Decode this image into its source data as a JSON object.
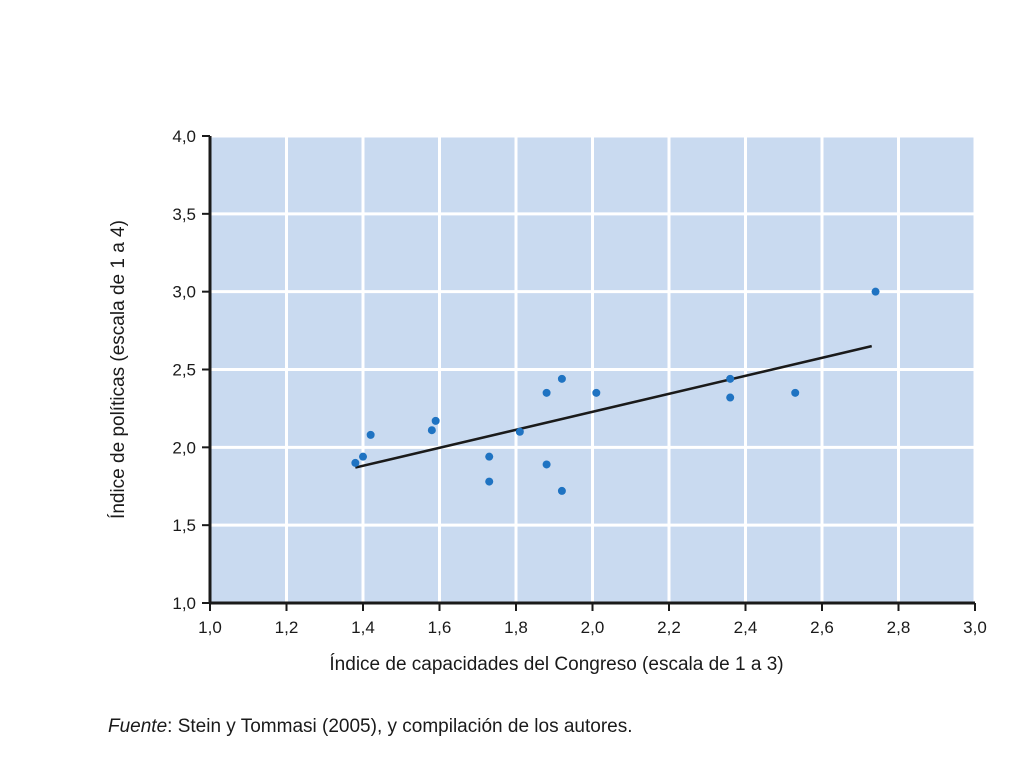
{
  "chart_data": {
    "type": "scatter",
    "title": "",
    "xlabel": "Índice de capacidades del Congreso (escala de 1 a 3)",
    "ylabel": "Índice de políticas (escala de 1 a 4)",
    "xlim": [
      1.0,
      3.0
    ],
    "ylim": [
      1.0,
      4.0
    ],
    "xticks": [
      "1,0",
      "1,2",
      "1,4",
      "1,6",
      "1,8",
      "2,0",
      "2,2",
      "2,4",
      "2,6",
      "2,8",
      "3,0"
    ],
    "yticks": [
      "1,0",
      "1,5",
      "2,0",
      "2,5",
      "3,0",
      "3,5",
      "4,0"
    ],
    "xtick_values": [
      1.0,
      1.2,
      1.4,
      1.6,
      1.8,
      2.0,
      2.2,
      2.4,
      2.6,
      2.8,
      3.0
    ],
    "ytick_values": [
      1.0,
      1.5,
      2.0,
      2.5,
      3.0,
      3.5,
      4.0
    ],
    "grid": true,
    "background_color": "#c9daf0",
    "grid_color": "#ffffff",
    "point_color": "#1f73c2",
    "line_color": "#1a1a1a",
    "points": [
      {
        "x": 1.38,
        "y": 1.9
      },
      {
        "x": 1.4,
        "y": 1.94
      },
      {
        "x": 1.42,
        "y": 2.08
      },
      {
        "x": 1.58,
        "y": 2.11
      },
      {
        "x": 1.59,
        "y": 2.17
      },
      {
        "x": 1.73,
        "y": 1.94
      },
      {
        "x": 1.73,
        "y": 1.78
      },
      {
        "x": 1.81,
        "y": 2.1
      },
      {
        "x": 1.88,
        "y": 2.35
      },
      {
        "x": 1.88,
        "y": 1.89
      },
      {
        "x": 1.92,
        "y": 2.44
      },
      {
        "x": 1.92,
        "y": 1.72
      },
      {
        "x": 2.01,
        "y": 2.35
      },
      {
        "x": 2.36,
        "y": 2.44
      },
      {
        "x": 2.36,
        "y": 2.32
      },
      {
        "x": 2.53,
        "y": 2.35
      },
      {
        "x": 2.74,
        "y": 3.0
      }
    ],
    "trend_line": {
      "x": [
        1.38,
        2.73
      ],
      "y": [
        1.87,
        2.65
      ]
    }
  },
  "source": {
    "lead": "Fuente",
    "text": ": Stein y Tommasi (2005), y compilación de los autores."
  }
}
